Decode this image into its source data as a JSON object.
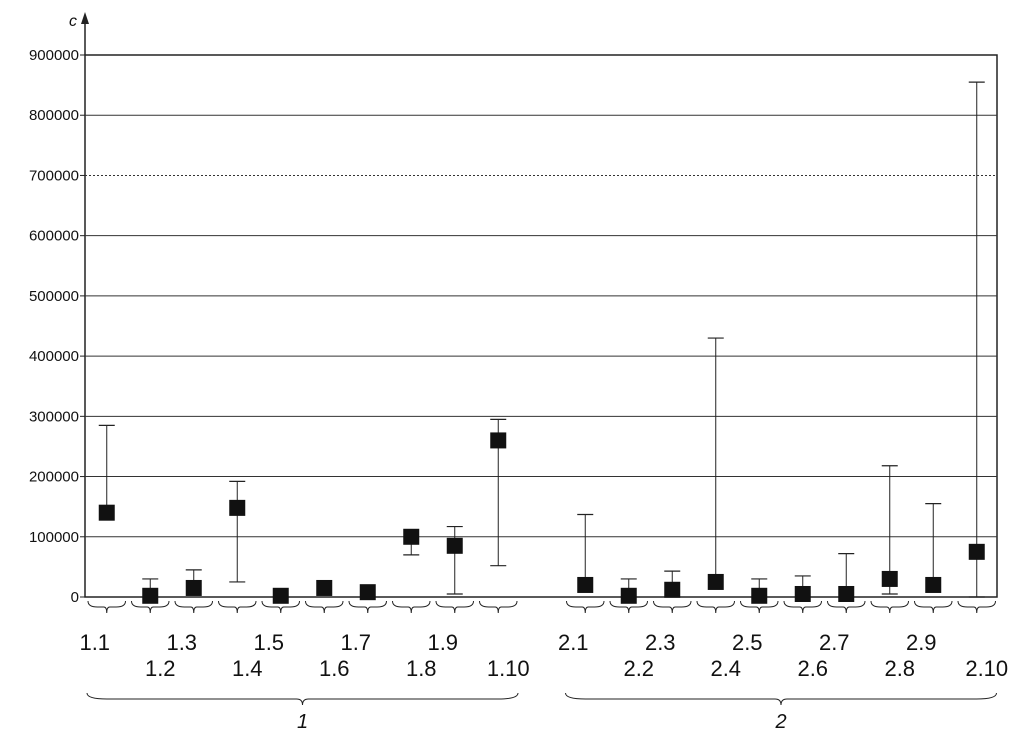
{
  "chart_data": {
    "type": "scatter",
    "ylabel": "c",
    "ylim": [
      0,
      900000
    ],
    "yticks": [
      0,
      100000,
      200000,
      300000,
      400000,
      500000,
      600000,
      700000,
      800000,
      900000
    ],
    "ytick_labels": [
      "0",
      "100000",
      "200000",
      "300000",
      "400000",
      "500000",
      "600000",
      "700000",
      "800000",
      "900000"
    ],
    "grid": true,
    "categories": [
      "1.1",
      "1.2",
      "1.3",
      "1.4",
      "1.5",
      "1.6",
      "1.7",
      "1.8",
      "1.9",
      "1.10",
      "",
      "2.1",
      "2.2",
      "2.3",
      "2.4",
      "2.5",
      "2.6",
      "2.7",
      "2.8",
      "2.9",
      "2.10"
    ],
    "points": [
      {
        "label": "1.1",
        "value": 140000,
        "low": 140000,
        "high": 285000
      },
      {
        "label": "1.2",
        "value": 2000,
        "low": 2000,
        "high": 30000
      },
      {
        "label": "1.3",
        "value": 15000,
        "low": 15000,
        "high": 45000
      },
      {
        "label": "1.4",
        "value": 148000,
        "low": 25000,
        "high": 192000
      },
      {
        "label": "1.5",
        "value": 2000,
        "low": 2000,
        "high": 2000
      },
      {
        "label": "1.6",
        "value": 15000,
        "low": 15000,
        "high": 15000
      },
      {
        "label": "1.7",
        "value": 8000,
        "low": 8000,
        "high": 8000
      },
      {
        "label": "1.8",
        "value": 100000,
        "low": 70000,
        "high": 100000
      },
      {
        "label": "1.9",
        "value": 85000,
        "low": 5000,
        "high": 117000
      },
      {
        "label": "1.10",
        "value": 260000,
        "low": 52000,
        "high": 295000
      },
      {
        "label": "2.1",
        "value": 20000,
        "low": 20000,
        "high": 137000
      },
      {
        "label": "2.2",
        "value": 2000,
        "low": 2000,
        "high": 30000
      },
      {
        "label": "2.3",
        "value": 12000,
        "low": 12000,
        "high": 43000
      },
      {
        "label": "2.4",
        "value": 25000,
        "low": 25000,
        "high": 430000
      },
      {
        "label": "2.5",
        "value": 2000,
        "low": 2000,
        "high": 30000
      },
      {
        "label": "2.6",
        "value": 5000,
        "low": 5000,
        "high": 35000
      },
      {
        "label": "2.7",
        "value": 5000,
        "low": 5000,
        "high": 72000
      },
      {
        "label": "2.8",
        "value": 30000,
        "low": 5000,
        "high": 218000
      },
      {
        "label": "2.9",
        "value": 20000,
        "low": 20000,
        "high": 155000
      },
      {
        "label": "2.10",
        "value": 75000,
        "low": 0,
        "high": 855000
      }
    ],
    "groups": [
      {
        "label": "1",
        "members": [
          "1.1",
          "1.10"
        ]
      },
      {
        "label": "2",
        "members": [
          "2.1",
          "2.10"
        ]
      }
    ]
  }
}
